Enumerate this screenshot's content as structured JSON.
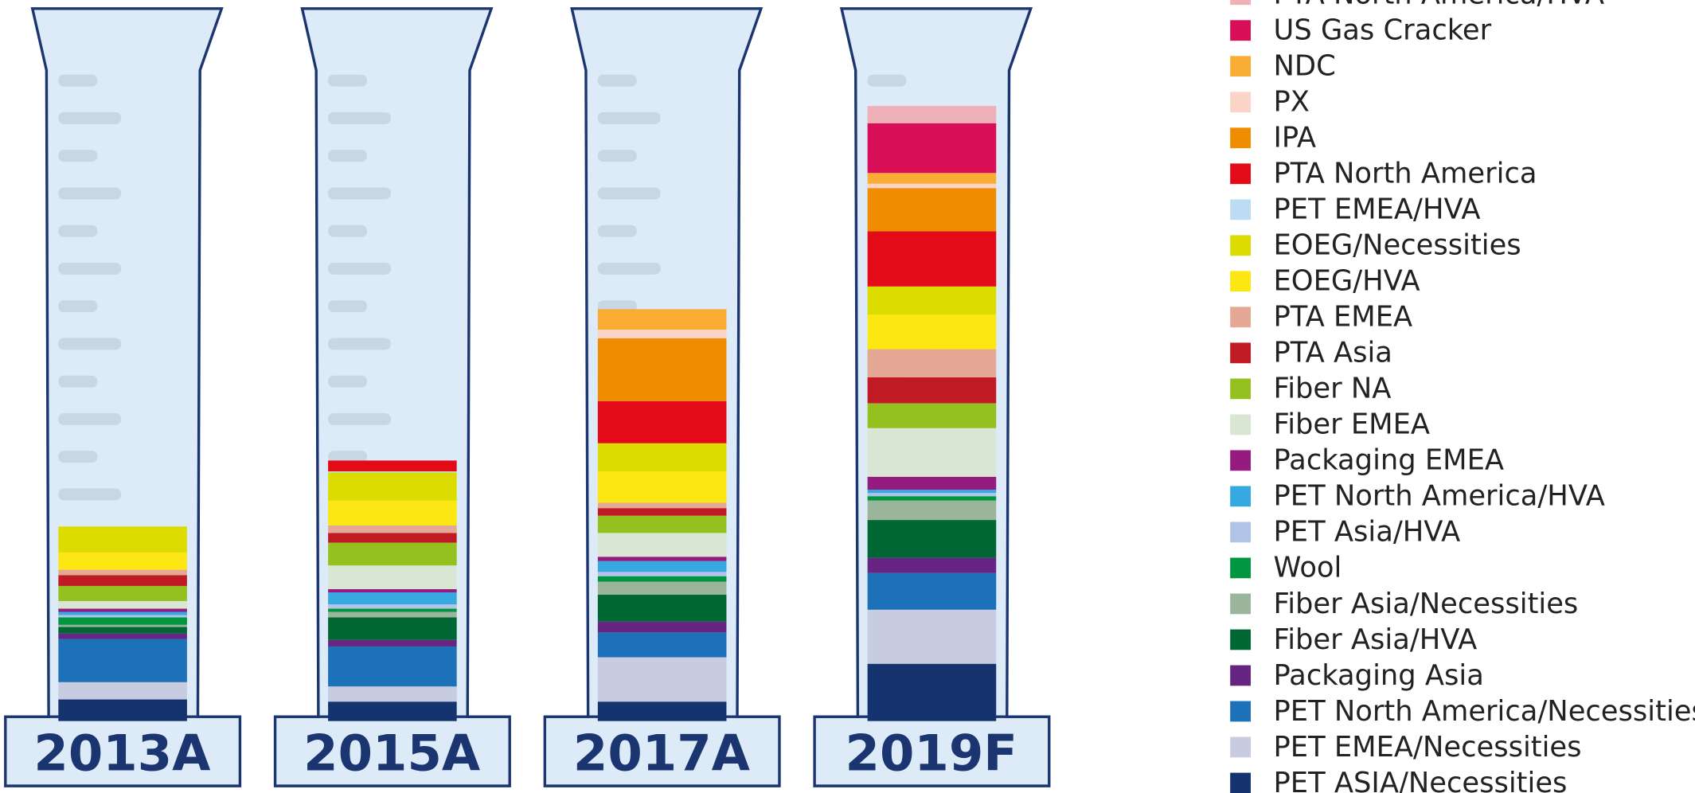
{
  "chart_data": {
    "type": "stacked-bar",
    "categories": [
      "2013A",
      "2015A",
      "2017A",
      "2019F"
    ],
    "ylim": [
      0,
      600
    ],
    "legend": "right",
    "series": [
      {
        "name": "PTA North America/HVA",
        "color": "#f0b0b8",
        "values": [
          0,
          0,
          0,
          16
        ]
      },
      {
        "name": "US Gas Cracker",
        "color": "#d80f57",
        "values": [
          0,
          0,
          0,
          46
        ]
      },
      {
        "name": "NDC",
        "color": "#f9ad35",
        "values": [
          0,
          0,
          19,
          10
        ]
      },
      {
        "name": "PX",
        "color": "#fcd5c8",
        "values": [
          0,
          0,
          8,
          4
        ]
      },
      {
        "name": "IPA",
        "color": "#f08c00",
        "values": [
          0,
          0,
          58,
          40
        ]
      },
      {
        "name": "PTA North America",
        "color": "#e30b17",
        "values": [
          0,
          10,
          39,
          51
        ]
      },
      {
        "name": "PET EMEA/HVA",
        "color": "#bcdcf4",
        "values": [
          0,
          1,
          0,
          0
        ]
      },
      {
        "name": "EOEG/Necessities",
        "color": "#dddc00",
        "values": [
          24,
          26,
          26,
          26
        ]
      },
      {
        "name": "EOEG/HVA",
        "color": "#fce713",
        "values": [
          16,
          23,
          29,
          32
        ]
      },
      {
        "name": "PTA EMEA",
        "color": "#e6a894",
        "values": [
          5,
          7,
          5,
          26
        ]
      },
      {
        "name": "PTA Asia",
        "color": "#c01a24",
        "values": [
          10,
          9,
          7,
          24
        ]
      },
      {
        "name": "Fiber NA",
        "color": "#95c11f",
        "values": [
          14,
          21,
          16,
          23
        ]
      },
      {
        "name": "Fiber EMEA",
        "color": "#d9e6d3",
        "values": [
          7,
          22,
          22,
          45
        ]
      },
      {
        "name": "Packaging EMEA",
        "color": "#951b81",
        "values": [
          3,
          3,
          4,
          12
        ]
      },
      {
        "name": "PET North America/HVA",
        "color": "#36a9e1",
        "values": [
          3,
          11,
          10,
          3
        ]
      },
      {
        "name": "PET Asia/HVA",
        "color": "#b0c4e8",
        "values": [
          2,
          4,
          4,
          3
        ]
      },
      {
        "name": "Wool",
        "color": "#009640",
        "values": [
          7,
          3,
          5,
          4
        ]
      },
      {
        "name": "Fiber Asia/Necessities",
        "color": "#9bb59b",
        "values": [
          2,
          5,
          12,
          18
        ]
      },
      {
        "name": "Fiber Asia/HVA",
        "color": "#006633",
        "values": [
          6,
          21,
          25,
          35
        ]
      },
      {
        "name": "Packaging Asia",
        "color": "#662483",
        "values": [
          5,
          6,
          10,
          14
        ]
      },
      {
        "name": "PET North America/Necessities",
        "color": "#1d71b8",
        "values": [
          40,
          37,
          23,
          34
        ]
      },
      {
        "name": "PET EMEA/Necessities",
        "color": "#c8cce0",
        "values": [
          16,
          14,
          41,
          50
        ]
      },
      {
        "name": "PET ASIA/Necessities",
        "color": "#14336f",
        "values": [
          20,
          18,
          18,
          53
        ]
      }
    ]
  }
}
